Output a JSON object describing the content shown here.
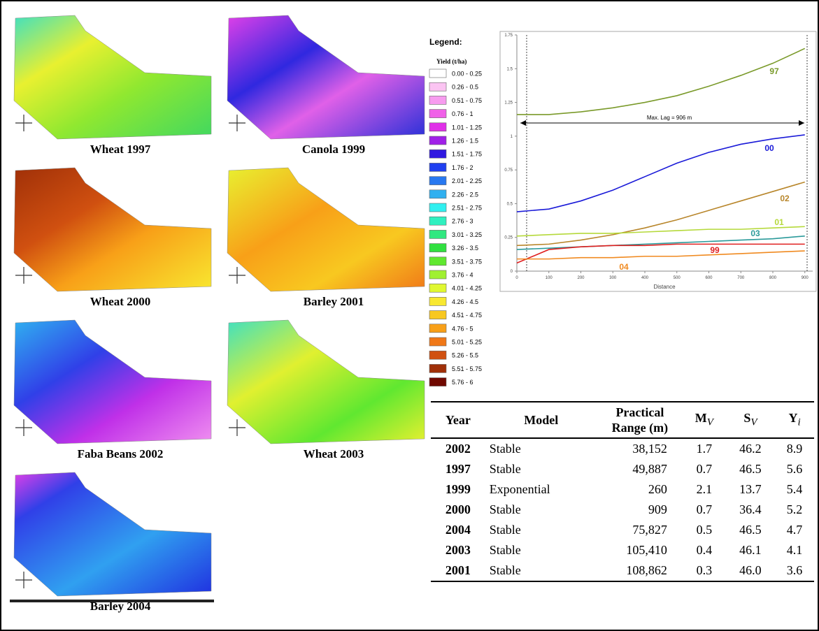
{
  "maps": [
    {
      "label": "Wheat 1997"
    },
    {
      "label": "Canola 1999"
    },
    {
      "label": "Wheat 2000"
    },
    {
      "label": "Barley 2001"
    },
    {
      "label": "Faba Beans 2002"
    },
    {
      "label": "Wheat 2003"
    },
    {
      "label": "Barley 2004"
    }
  ],
  "legend": {
    "title": "Legend:",
    "subtitle": "Yield (t/ha)",
    "classes": [
      {
        "label": "0.00 - 0.25",
        "color": "#ffffff"
      },
      {
        "label": "0.26 - 0.5",
        "color": "#fbc4f2"
      },
      {
        "label": "0.51 - 0.75",
        "color": "#f79cef"
      },
      {
        "label": "0.76 - 1",
        "color": "#f060e8"
      },
      {
        "label": "1.01 - 1.25",
        "color": "#e030e8"
      },
      {
        "label": "1.26 - 1.5",
        "color": "#a020e8"
      },
      {
        "label": "1.51 - 1.75",
        "color": "#3018e0"
      },
      {
        "label": "1.76 - 2",
        "color": "#2040f0"
      },
      {
        "label": "2.01 - 2.25",
        "color": "#2878f0"
      },
      {
        "label": "2.26 - 2.5",
        "color": "#30b0f0"
      },
      {
        "label": "2.51 - 2.75",
        "color": "#30f0f0"
      },
      {
        "label": "2.76 - 3",
        "color": "#30f0c0"
      },
      {
        "label": "3.01 - 3.25",
        "color": "#30e880"
      },
      {
        "label": "3.26 - 3.5",
        "color": "#30e040"
      },
      {
        "label": "3.51 - 3.75",
        "color": "#60e830"
      },
      {
        "label": "3.76 - 4",
        "color": "#a0f030"
      },
      {
        "label": "4.01 - 4.25",
        "color": "#e0f830"
      },
      {
        "label": "4.26 - 4.5",
        "color": "#f8e830"
      },
      {
        "label": "4.51 - 4.75",
        "color": "#f8c820"
      },
      {
        "label": "4.76 - 5",
        "color": "#f8a018"
      },
      {
        "label": "5.01 - 5.25",
        "color": "#f07818"
      },
      {
        "label": "5.26 - 5.5",
        "color": "#d05010"
      },
      {
        "label": "5.51 - 5.75",
        "color": "#a03008"
      },
      {
        "label": "5.76 - 6",
        "color": "#700800"
      }
    ]
  },
  "chart_data": {
    "type": "line",
    "x_label": "Distance",
    "annotation": "Max. Lag = 906 m",
    "x": [
      0,
      100,
      200,
      300,
      400,
      500,
      600,
      700,
      800,
      900
    ],
    "xlim": [
      0,
      950
    ],
    "xticks": [
      0,
      100,
      200,
      300,
      400,
      500,
      600,
      700,
      800,
      900
    ],
    "ylim": [
      0,
      1.75
    ],
    "yticks": [
      0,
      0.25,
      0.5,
      0.75,
      1,
      1.25,
      1.5,
      1.75
    ],
    "series": [
      {
        "name": "97",
        "color": "#7a9a2a",
        "values": [
          1.16,
          1.16,
          1.18,
          1.21,
          1.25,
          1.3,
          1.37,
          1.45,
          1.54,
          1.65
        ]
      },
      {
        "name": "00",
        "color": "#1a1ad8",
        "values": [
          0.44,
          0.46,
          0.52,
          0.6,
          0.7,
          0.8,
          0.88,
          0.94,
          0.98,
          1.01
        ]
      },
      {
        "name": "02",
        "color": "#b8862b",
        "values": [
          0.19,
          0.2,
          0.23,
          0.27,
          0.32,
          0.38,
          0.45,
          0.52,
          0.59,
          0.66
        ]
      },
      {
        "name": "01",
        "color": "#b5d93a",
        "values": [
          0.26,
          0.27,
          0.28,
          0.28,
          0.29,
          0.3,
          0.31,
          0.31,
          0.32,
          0.33
        ]
      },
      {
        "name": "03",
        "color": "#2a9a9a",
        "values": [
          0.16,
          0.17,
          0.18,
          0.19,
          0.2,
          0.21,
          0.22,
          0.23,
          0.24,
          0.26
        ]
      },
      {
        "name": "99",
        "color": "#e02020",
        "values": [
          0.06,
          0.16,
          0.18,
          0.19,
          0.19,
          0.2,
          0.2,
          0.2,
          0.2,
          0.2
        ]
      },
      {
        "name": "04",
        "color": "#f08a20",
        "values": [
          0.09,
          0.09,
          0.1,
          0.1,
          0.11,
          0.11,
          0.12,
          0.13,
          0.14,
          0.15
        ]
      }
    ]
  },
  "table": {
    "columns": [
      {
        "text": "Year"
      },
      {
        "text": "Model"
      },
      {
        "text": "Practical Range (m)"
      },
      {
        "text": "M",
        "sub": "V"
      },
      {
        "text": "S",
        "sub": "V"
      },
      {
        "text": "Y",
        "sub": "i"
      }
    ],
    "rows": [
      [
        "2002",
        "Stable",
        "38,152",
        "1.7",
        "46.2",
        "8.9"
      ],
      [
        "1997",
        "Stable",
        "49,887",
        "0.7",
        "46.5",
        "5.6"
      ],
      [
        "1999",
        "Exponential",
        "260",
        "2.1",
        "13.7",
        "5.4"
      ],
      [
        "2000",
        "Stable",
        "909",
        "0.7",
        "36.4",
        "5.2"
      ],
      [
        "2004",
        "Stable",
        "75,827",
        "0.5",
        "46.5",
        "4.7"
      ],
      [
        "2003",
        "Stable",
        "105,410",
        "0.4",
        "46.1",
        "4.1"
      ],
      [
        "2001",
        "Stable",
        "108,862",
        "0.3",
        "46.0",
        "3.6"
      ]
    ]
  }
}
